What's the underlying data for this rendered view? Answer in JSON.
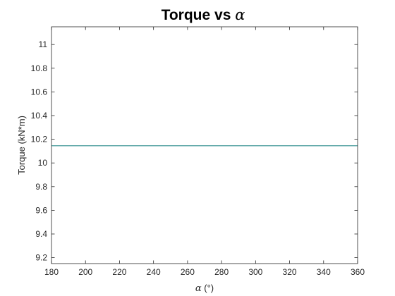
{
  "chart_data": {
    "type": "line",
    "title": {
      "text": "Torque vs ",
      "symbol": "α"
    },
    "xlabel": {
      "symbol": "α",
      "text": " (°)"
    },
    "ylabel": "Torque (kN*m)",
    "xlim": [
      180,
      360
    ],
    "ylim": [
      9.15,
      11.15
    ],
    "xticks": [
      180,
      200,
      220,
      240,
      260,
      280,
      300,
      320,
      340,
      360
    ],
    "yticks": [
      9.2,
      9.4,
      9.6,
      9.8,
      10,
      10.2,
      10.4,
      10.6,
      10.8,
      11
    ],
    "ytick_labels": [
      "9.2",
      "9.4",
      "9.6",
      "9.8",
      "10",
      "10.2",
      "10.4",
      "10.6",
      "10.8",
      "11"
    ],
    "grid": false,
    "series": [
      {
        "x": [
          180,
          360
        ],
        "y": [
          10.145,
          10.145
        ],
        "color": "#2a8c8c"
      }
    ]
  }
}
